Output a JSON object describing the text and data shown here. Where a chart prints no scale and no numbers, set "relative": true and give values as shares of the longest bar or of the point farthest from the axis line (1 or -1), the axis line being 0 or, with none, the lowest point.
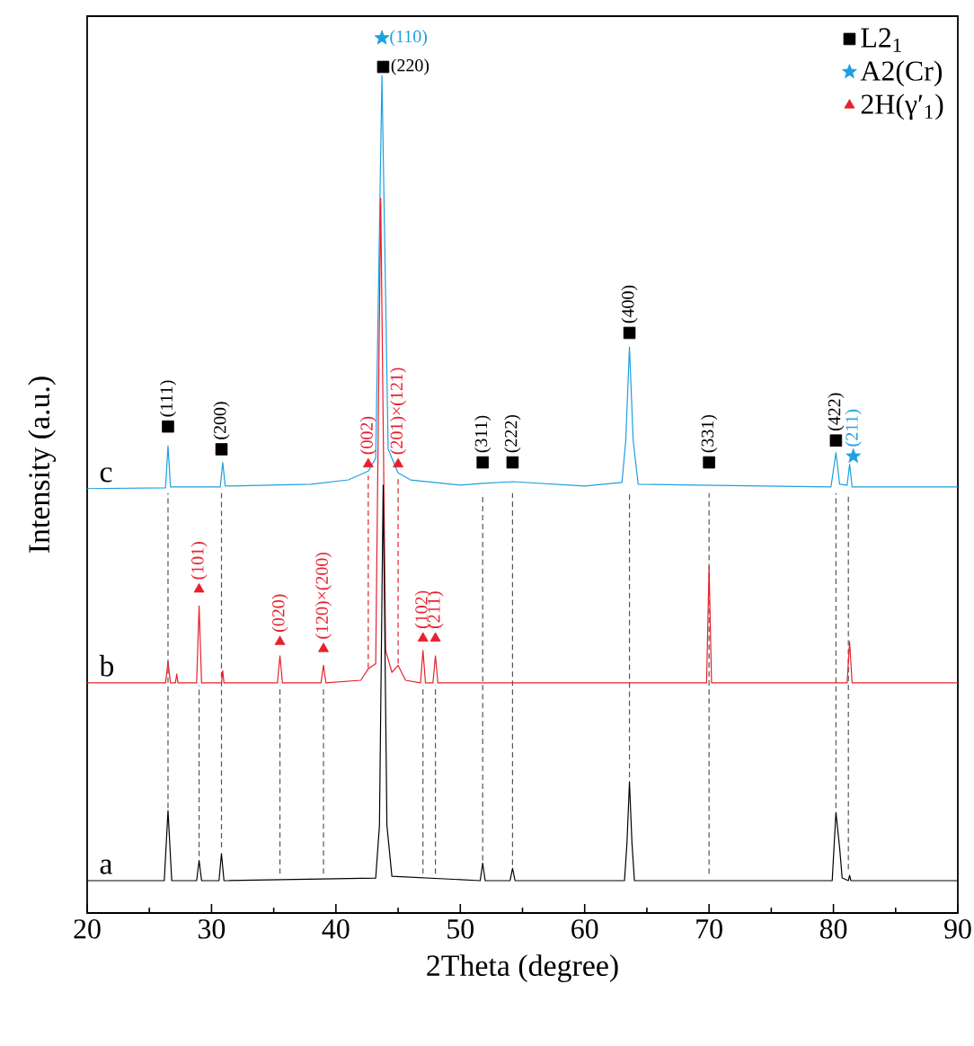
{
  "chart_data": {
    "type": "line",
    "relative": true,
    "xlabel": "2Theta (degree)",
    "ylabel": "Intensity (a.u.)",
    "xlim": [
      20,
      90
    ],
    "xticks": [
      20,
      30,
      40,
      50,
      60,
      70,
      80,
      90
    ],
    "tick_labels": "x",
    "legend": "top right",
    "series": [
      {
        "type": "line",
        "line_style": "dashed",
        "color": "#555555",
        "x": [
          26.5,
          26.5
        ],
        "values": [
          0.12,
          0.48
        ]
      },
      {
        "type": "line",
        "line_style": "dashed",
        "color": "#555555",
        "x": [
          30.8,
          30.8
        ],
        "values": [
          0.075,
          0.48
        ]
      },
      {
        "type": "line",
        "line_style": "dashed",
        "color": "#555555",
        "x": [
          51.8,
          51.8
        ],
        "values": [
          0.06,
          0.48
        ]
      },
      {
        "type": "line",
        "line_style": "dashed",
        "color": "#555555",
        "x": [
          54.2,
          54.2
        ],
        "values": [
          0.055,
          0.48
        ]
      },
      {
        "type": "line",
        "line_style": "dashed",
        "color": "#555555",
        "x": [
          63.6,
          63.6
        ],
        "values": [
          0.155,
          0.48
        ]
      },
      {
        "type": "line",
        "line_style": "dashed",
        "color": "#555555",
        "x": [
          70.0,
          70.0
        ],
        "values": [
          0.045,
          0.48
        ]
      },
      {
        "type": "line",
        "line_style": "dashed",
        "color": "#555555",
        "x": [
          80.2,
          80.2
        ],
        "values": [
          0.12,
          0.48
        ]
      },
      {
        "type": "line",
        "line_style": "dashed",
        "color": "#555555",
        "x": [
          81.2,
          81.2
        ],
        "values": [
          0.05,
          0.48
        ]
      },
      {
        "type": "line",
        "line_style": "dashed",
        "color": "#555555",
        "x": [
          29.0,
          29.0
        ],
        "values": [
          0.065,
          0.26
        ]
      },
      {
        "type": "line",
        "line_style": "dashed",
        "color": "#555555",
        "x": [
          35.5,
          35.5
        ],
        "values": [
          0.045,
          0.26
        ]
      },
      {
        "type": "line",
        "line_style": "dashed",
        "color": "#555555",
        "x": [
          39.0,
          39.0
        ],
        "values": [
          0.045,
          0.26
        ]
      },
      {
        "type": "line",
        "line_style": "dashed",
        "color": "#555555",
        "x": [
          47.0,
          47.0
        ],
        "values": [
          0.045,
          0.26
        ]
      },
      {
        "type": "line",
        "line_style": "dashed",
        "color": "#555555",
        "x": [
          48.0,
          48.0
        ],
        "values": [
          0.045,
          0.26
        ]
      },
      {
        "type": "line",
        "line_style": "dashed",
        "color": "#e8202d",
        "x": [
          42.6,
          42.6
        ],
        "values": [
          0.28,
          0.5
        ]
      },
      {
        "type": "line",
        "line_style": "dashed",
        "color": "#e8202d",
        "x": [
          45.0,
          45.0
        ],
        "values": [
          0.285,
          0.5
        ]
      },
      {
        "name": "c",
        "color": "#1e9fe0",
        "x": [
          20,
          26.3,
          26.5,
          26.7,
          30.7,
          30.9,
          31.1,
          38,
          41,
          42.6,
          43.2,
          43.7,
          44.2,
          45.0,
          46.0,
          50,
          51.8,
          54.2,
          60,
          63.0,
          63.3,
          63.6,
          63.9,
          64.3,
          79.8,
          80.2,
          80.5,
          81.1,
          81.3,
          81.5,
          90
        ],
        "values": [
          0.485,
          0.486,
          0.534,
          0.487,
          0.487,
          0.515,
          0.488,
          0.49,
          0.495,
          0.505,
          0.52,
          0.957,
          0.53,
          0.503,
          0.495,
          0.489,
          0.491,
          0.493,
          0.488,
          0.492,
          0.54,
          0.647,
          0.54,
          0.49,
          0.487,
          0.526,
          0.49,
          0.489,
          0.513,
          0.487,
          0.487
        ]
      },
      {
        "name": "b",
        "color": "#e8202d",
        "x": [
          20,
          26.3,
          26.5,
          26.7,
          27.1,
          27.2,
          27.3,
          28.8,
          29.0,
          29.2,
          30.8,
          30.9,
          31.0,
          35.3,
          35.5,
          35.7,
          38.8,
          39.0,
          39.2,
          42.0,
          42.6,
          43.2,
          43.6,
          44.0,
          44.5,
          45.0,
          45.6,
          46.8,
          47.0,
          47.2,
          47.8,
          48.0,
          48.2,
          69.8,
          70.0,
          70.2,
          81.1,
          81.3,
          81.5,
          90
        ],
        "values": [
          0.263,
          0.263,
          0.287,
          0.263,
          0.263,
          0.273,
          0.263,
          0.263,
          0.351,
          0.263,
          0.263,
          0.277,
          0.263,
          0.263,
          0.294,
          0.263,
          0.263,
          0.283,
          0.263,
          0.266,
          0.279,
          0.285,
          0.817,
          0.3,
          0.275,
          0.283,
          0.266,
          0.263,
          0.3,
          0.263,
          0.263,
          0.294,
          0.263,
          0.263,
          0.396,
          0.263,
          0.263,
          0.31,
          0.263,
          0.263
        ]
      },
      {
        "name": "a",
        "color": "#000000",
        "x": [
          20,
          26.2,
          26.5,
          26.8,
          28.8,
          29.0,
          29.2,
          30.6,
          30.8,
          31.0,
          43.2,
          43.5,
          43.8,
          44.1,
          44.5,
          51.6,
          51.8,
          52.0,
          54.0,
          54.2,
          54.4,
          63.2,
          63.4,
          63.6,
          63.8,
          64.0,
          79.9,
          80.2,
          80.5,
          80.7,
          81.2,
          81.3,
          81.4,
          90
        ],
        "values": [
          0.037,
          0.037,
          0.117,
          0.037,
          0.037,
          0.06,
          0.037,
          0.037,
          0.068,
          0.037,
          0.04,
          0.1,
          0.489,
          0.1,
          0.042,
          0.037,
          0.057,
          0.037,
          0.037,
          0.051,
          0.037,
          0.037,
          0.08,
          0.15,
          0.08,
          0.037,
          0.037,
          0.115,
          0.074,
          0.04,
          0.037,
          0.043,
          0.037,
          0.037
        ]
      },
      {
        "name": "L2$_{1}$",
        "type": "scatter",
        "marker": "square",
        "color": "#000000",
        "x": [
          26.5,
          30.8,
          43.8,
          51.8,
          54.2,
          63.6,
          70.0,
          80.2
        ],
        "values": [
          0.556,
          0.53,
          0.967,
          0.515,
          0.515,
          0.663,
          0.515,
          0.54
        ]
      },
      {
        "name": "A2(Cr)",
        "type": "scatter",
        "marker": "star",
        "color": "#1e9fe0",
        "x": [
          43.7,
          81.6
        ],
        "values": [
          1.0,
          0.522
        ]
      },
      {
        "name": "2H(γ′$_{1}$)",
        "type": "scatter",
        "marker": "triangle",
        "color": "#e8202d",
        "x": [
          29.0,
          35.5,
          39.0,
          42.6,
          45.0,
          47.0,
          48.0
        ],
        "values": [
          0.37,
          0.31,
          0.302,
          0.513,
          0.513,
          0.314,
          0.314
        ]
      }
    ],
    "annotations": [
      {
        "text": "(111)",
        "x": 26.5,
        "y": 0.556
      },
      {
        "text": "(200)",
        "x": 30.8,
        "y": 0.53
      },
      {
        "text": "(220)",
        "x": 43.8,
        "y": 0.967
      },
      {
        "text": "(311)",
        "x": 51.8,
        "y": 0.515
      },
      {
        "text": "(222)",
        "x": 54.2,
        "y": 0.515
      },
      {
        "text": "(400)",
        "x": 63.6,
        "y": 0.663
      },
      {
        "text": "(331)",
        "x": 70.0,
        "y": 0.515
      },
      {
        "text": "(422)",
        "x": 80.2,
        "y": 0.54
      },
      {
        "text": "(110)",
        "x": 43.7,
        "y": 1.0
      },
      {
        "text": "(211)",
        "x": 81.6,
        "y": 0.522
      },
      {
        "text": "(101)",
        "x": 29.0,
        "y": 0.37
      },
      {
        "text": "(020)",
        "x": 35.5,
        "y": 0.31
      },
      {
        "text": "(120)×(200)",
        "x": 39.0,
        "y": 0.302
      },
      {
        "text": "(002)",
        "x": 42.6,
        "y": 0.513
      },
      {
        "text": "(201)×(121)",
        "x": 45.0,
        "y": 0.513
      },
      {
        "text": "(102)",
        "x": 47.0,
        "y": 0.314
      },
      {
        "text": "(211)",
        "x": 48.0,
        "y": 0.314
      }
    ]
  }
}
